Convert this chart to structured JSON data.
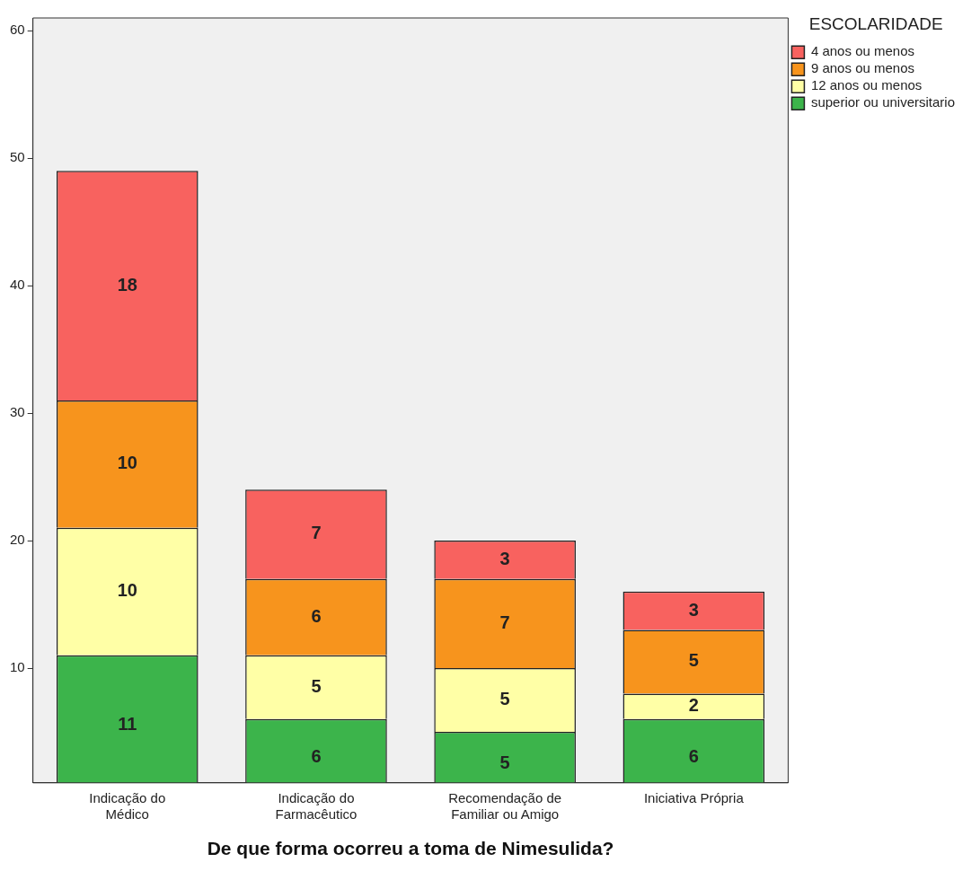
{
  "chart_data": {
    "type": "bar",
    "stacked": true,
    "xlabel": "De que forma ocorreu a toma de Nimesulida?",
    "legend_title": "ESCOLARIDADE",
    "legend": "top right",
    "data_labels": true,
    "grid": false,
    "categories": [
      "Indicação do Médico",
      "Indicação do Farmacêutico",
      "Recomendação de Familiar ou Amigo",
      "Iniciativa Própria"
    ],
    "ylim": [
      1,
      61
    ],
    "yticks": [
      10,
      20,
      30,
      40,
      50,
      60
    ],
    "series": [
      {
        "name": "superior ou universitario",
        "color": "#3cb44b",
        "values": [
          11,
          6,
          5,
          6
        ]
      },
      {
        "name": "12 anos ou menos",
        "color": "#ffffa6",
        "values": [
          10,
          5,
          5,
          2
        ]
      },
      {
        "name": "9 anos ou menos",
        "color": "#f7941d",
        "values": [
          10,
          6,
          7,
          5
        ]
      },
      {
        "name": "4 anos ou menos",
        "color": "#f8625f",
        "values": [
          18,
          7,
          3,
          3
        ]
      }
    ]
  }
}
